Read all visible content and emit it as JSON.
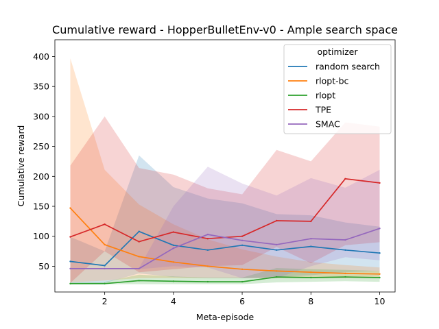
{
  "chart_data": {
    "type": "line",
    "title": "Cumulative reward - HopperBulletEnv-v0 - Ample search space",
    "xlabel": "Meta-episode",
    "ylabel": "Cumulative reward",
    "xlim": [
      0.55,
      10.45
    ],
    "ylim": [
      7,
      428
    ],
    "xticks": [
      2,
      4,
      6,
      8,
      10
    ],
    "yticks": [
      50,
      100,
      150,
      200,
      250,
      300,
      350,
      400
    ],
    "grid": false,
    "legend": {
      "title": "optimizer",
      "position": "upper right"
    },
    "x": [
      1,
      2,
      3,
      4,
      5,
      6,
      7,
      8,
      9,
      10
    ],
    "series": [
      {
        "name": "random search",
        "color": "#1f77b4",
        "values": [
          58,
          51,
          108,
          85,
          77,
          85,
          77,
          83,
          77,
          72
        ],
        "band_low": [
          21,
          22,
          38,
          32,
          30,
          30,
          32,
          35,
          40,
          42
        ],
        "band_high": [
          99,
          75,
          235,
          182,
          163,
          155,
          137,
          135,
          123,
          116
        ]
      },
      {
        "name": "rlopt-bc",
        "color": "#ff7f0e",
        "values": [
          147,
          86,
          66,
          57,
          50,
          45,
          42,
          40,
          38,
          37
        ],
        "band_low": [
          23,
          26,
          30,
          30,
          30,
          30,
          30,
          30,
          30,
          30
        ],
        "band_high": [
          397,
          211,
          153,
          120,
          95,
          78,
          66,
          57,
          52,
          48
        ]
      },
      {
        "name": "rlopt",
        "color": "#2ca02c",
        "values": [
          21,
          21,
          26,
          25,
          24,
          24,
          32,
          31,
          32,
          31
        ],
        "band_low": [
          20,
          20,
          20,
          20,
          20,
          20,
          23,
          24,
          25,
          24
        ],
        "band_high": [
          23,
          24,
          36,
          33,
          31,
          31,
          47,
          45,
          44,
          42
        ]
      },
      {
        "name": "TPE",
        "color": "#d62728",
        "values": [
          99,
          120,
          91,
          107,
          96,
          100,
          126,
          125,
          196,
          189
        ],
        "band_low": [
          22,
          75,
          40,
          45,
          50,
          52,
          82,
          55,
          85,
          90
        ],
        "band_high": [
          218,
          300,
          214,
          203,
          180,
          170,
          244,
          225,
          290,
          283
        ]
      },
      {
        "name": "SMAC",
        "color": "#9467bd",
        "values": [
          46,
          46,
          46,
          80,
          103,
          93,
          86,
          96,
          94,
          113
        ],
        "band_low": [
          45,
          45,
          45,
          50,
          48,
          30,
          30,
          50,
          65,
          60
        ],
        "band_high": [
          47,
          47,
          47,
          150,
          216,
          188,
          168,
          197,
          181,
          211
        ]
      }
    ]
  }
}
